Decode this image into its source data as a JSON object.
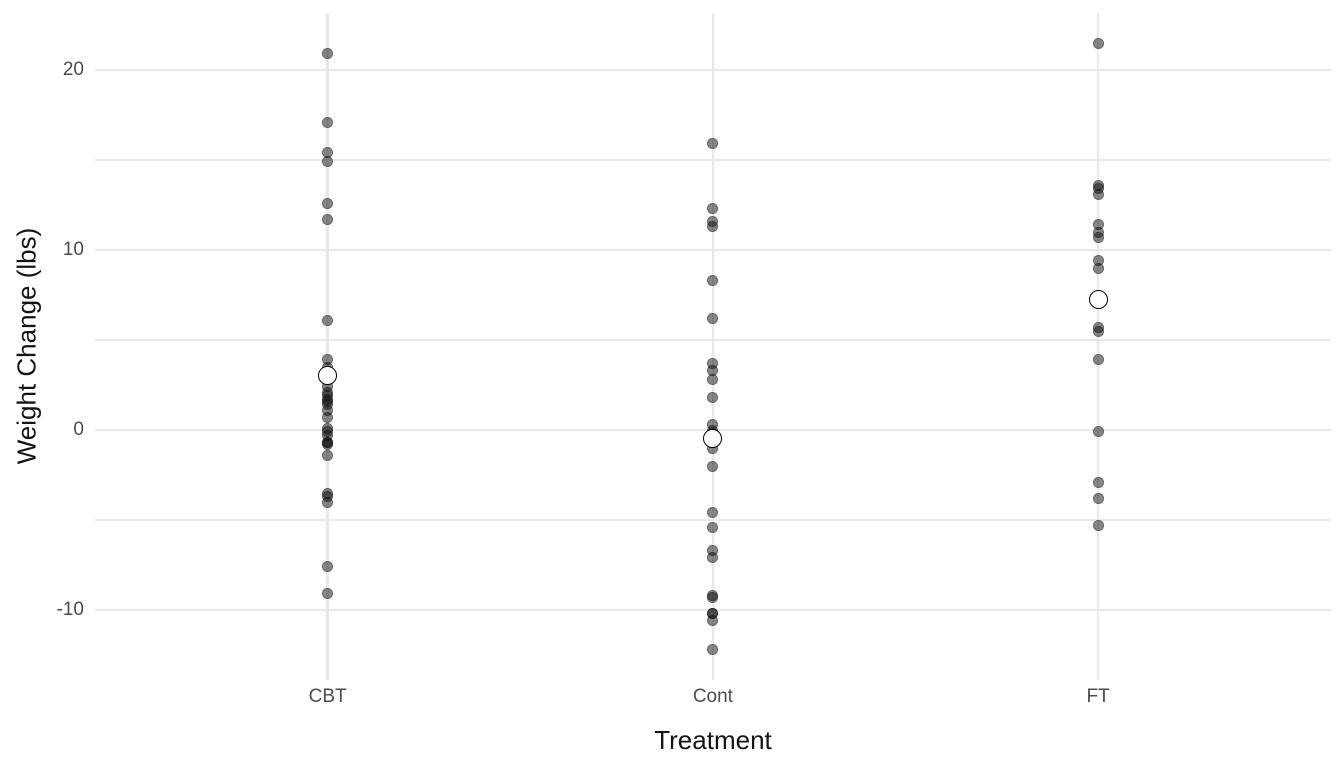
{
  "figure": {
    "x_axis_title": "Treatment",
    "y_axis_title": "Weight Change (lbs)"
  },
  "chart_data": {
    "type": "scatter",
    "subtype": "strip-plot-with-group-means",
    "title": "",
    "xlabel": "Treatment",
    "ylabel": "Weight Change (lbs)",
    "categories": [
      "CBT",
      "Cont",
      "FT"
    ],
    "y_major_ticks": [
      20,
      10,
      0,
      -10
    ],
    "y_major_tick_labels": [
      "20",
      "10",
      "0",
      "-10"
    ],
    "y_minor_ticks": [
      15,
      5,
      -5
    ],
    "ylim": [
      -13.9,
      23.2
    ],
    "grid": "on",
    "legend": "none",
    "series": [
      {
        "name": "CBT",
        "values": [
          1.7,
          0.7,
          -0.1,
          -0.7,
          -3.5,
          14.9,
          3.5,
          17.1,
          -7.6,
          1.6,
          11.7,
          6.1,
          1.1,
          -4.0,
          20.9,
          -9.1,
          2.1,
          -1.4,
          1.4,
          -0.3,
          -3.7,
          -0.8,
          2.4,
          12.6,
          1.9,
          3.9,
          0.1,
          15.4,
          -0.7
        ],
        "mean": 3.01
      },
      {
        "name": "Cont",
        "values": [
          -0.5,
          -9.3,
          -5.4,
          12.3,
          -2.0,
          -10.2,
          -12.2,
          11.6,
          -7.1,
          6.2,
          -0.2,
          -9.2,
          8.3,
          3.3,
          11.3,
          0.0,
          -1.0,
          -10.6,
          -4.6,
          -6.7,
          2.8,
          0.3,
          1.8,
          3.7,
          15.9,
          -10.2
        ],
        "mean": -0.45
      },
      {
        "name": "FT",
        "values": [
          11.4,
          11.0,
          5.5,
          9.4,
          13.6,
          -2.9,
          -0.1,
          7.4,
          21.5,
          -5.3,
          -3.8,
          13.4,
          13.1,
          9.0,
          3.9,
          5.7,
          10.7
        ],
        "mean": 7.26
      }
    ],
    "colors": {
      "background": "#ffffff",
      "gridline": "#e8e8e8",
      "point": "rgba(15,15,15,0.50)",
      "mean_marker_fill": "#ffffff",
      "mean_marker_stroke": "#000000",
      "tick_label_text": "#4d4d4d",
      "axis_title_text": "#141414"
    }
  }
}
